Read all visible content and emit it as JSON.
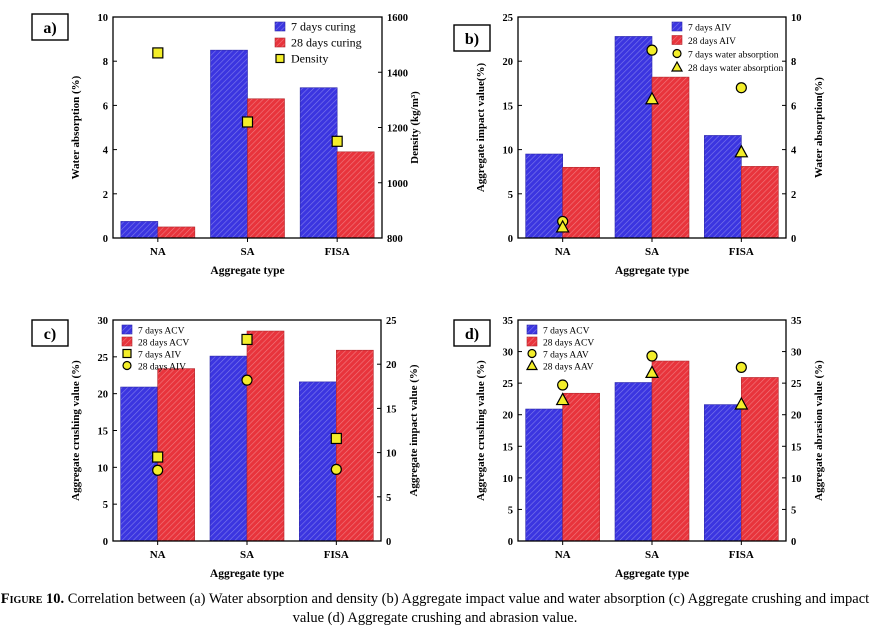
{
  "caption": {
    "label": "Figure 10.",
    "text": " Correlation between (a) Water absorption and density (b) Aggregate impact value and water absorption (c) Aggregate crushing and impact value (d) Aggregate crushing and abrasion value."
  },
  "colors": {
    "blue": "#3b35e0",
    "red": "#e8343c",
    "marker_fill": "#f3ee2a",
    "marker_edge": "#000000"
  },
  "chart_data": [
    {
      "panel_label": "a)",
      "type": "bar",
      "categories": [
        "NA",
        "SA",
        "FISA"
      ],
      "xlabel": "Aggregate type",
      "ylabel": "Water absorption (%)",
      "ylim": [
        0,
        10
      ],
      "yticks": [
        "0",
        "2",
        "4",
        "6",
        "8",
        "10"
      ],
      "y2label": "Density (kg/m³)",
      "y2lim": [
        800,
        1600
      ],
      "y2ticks": [
        "800",
        "1000",
        "1200",
        "1400",
        "1600"
      ],
      "series": [
        {
          "name": "7 days curing",
          "kind": "bar",
          "axis": "left",
          "values": [
            0.75,
            8.5,
            6.8
          ]
        },
        {
          "name": "28 days curing",
          "kind": "bar",
          "axis": "left",
          "values": [
            0.5,
            6.3,
            3.9
          ]
        },
        {
          "name": "Density",
          "kind": "marker",
          "marker": "square",
          "axis": "right",
          "values": [
            1470,
            1220,
            1150
          ]
        }
      ],
      "legend": "top-right"
    },
    {
      "panel_label": "b)",
      "type": "bar",
      "categories": [
        "NA",
        "SA",
        "FISA"
      ],
      "xlabel": "Aggregate type",
      "ylabel": "Aggregate impact value(%)",
      "ylim": [
        0,
        25
      ],
      "yticks": [
        "0",
        "5",
        "10",
        "15",
        "20",
        "25"
      ],
      "y2label": "Water absorption(%)",
      "y2lim": [
        0,
        10
      ],
      "y2ticks": [
        "0",
        "2",
        "4",
        "6",
        "8",
        "10"
      ],
      "series": [
        {
          "name": "7 days AIV",
          "kind": "bar",
          "axis": "left",
          "values": [
            9.5,
            22.8,
            11.6
          ]
        },
        {
          "name": "28 days AIV",
          "kind": "bar",
          "axis": "left",
          "values": [
            8.0,
            18.2,
            8.1
          ]
        },
        {
          "name": "7 days water absorption",
          "kind": "marker",
          "marker": "circle",
          "axis": "right",
          "values": [
            0.75,
            8.5,
            6.8
          ]
        },
        {
          "name": "28 days water absorption",
          "kind": "marker",
          "marker": "triangle",
          "axis": "right",
          "values": [
            0.5,
            6.3,
            3.9
          ]
        }
      ],
      "legend": "top-right"
    },
    {
      "panel_label": "c)",
      "type": "bar",
      "categories": [
        "NA",
        "SA",
        "FISA"
      ],
      "xlabel": "Aggregate type",
      "ylabel": "Aggregate crushing value (%)",
      "ylim": [
        0,
        30
      ],
      "yticks": [
        "0",
        "5",
        "10",
        "15",
        "20",
        "25",
        "30"
      ],
      "y2label": "Aggregate impact value (%)",
      "y2lim": [
        0,
        25
      ],
      "y2ticks": [
        "0",
        "5",
        "10",
        "15",
        "20",
        "25"
      ],
      "series": [
        {
          "name": "7 days ACV",
          "kind": "bar",
          "axis": "left",
          "values": [
            20.9,
            25.1,
            21.6
          ]
        },
        {
          "name": "28 days ACV",
          "kind": "bar",
          "axis": "left",
          "values": [
            23.4,
            28.5,
            25.9
          ]
        },
        {
          "name": "7 days AIV",
          "kind": "marker",
          "marker": "square",
          "axis": "right",
          "values": [
            9.5,
            22.8,
            11.6
          ]
        },
        {
          "name": "28 days AIV",
          "kind": "marker",
          "marker": "circle",
          "axis": "right",
          "values": [
            8.0,
            18.2,
            8.1
          ]
        }
      ],
      "legend": "top-left"
    },
    {
      "panel_label": "d)",
      "type": "bar",
      "categories": [
        "NA",
        "SA",
        "FISA"
      ],
      "xlabel": "Aggregate type",
      "ylabel": "Aggregate crushing value (%)",
      "ylim": [
        0,
        35
      ],
      "yticks": [
        "0",
        "5",
        "10",
        "15",
        "20",
        "25",
        "30",
        "35"
      ],
      "y2label": "Aggregate abrasion value (%)",
      "y2lim": [
        0,
        35
      ],
      "y2ticks": [
        "0",
        "5",
        "10",
        "15",
        "20",
        "25",
        "30",
        "35"
      ],
      "series": [
        {
          "name": "7 days ACV",
          "kind": "bar",
          "axis": "left",
          "values": [
            20.9,
            25.1,
            21.6
          ]
        },
        {
          "name": "28 days ACV",
          "kind": "bar",
          "axis": "left",
          "values": [
            23.4,
            28.5,
            25.9
          ]
        },
        {
          "name": "7 days AAV",
          "kind": "marker",
          "marker": "circle",
          "axis": "right",
          "values": [
            24.7,
            29.3,
            27.5
          ]
        },
        {
          "name": "28 days AAV",
          "kind": "marker",
          "marker": "triangle",
          "axis": "right",
          "values": [
            22.4,
            26.7,
            21.7
          ]
        }
      ],
      "legend": "top-left"
    }
  ]
}
